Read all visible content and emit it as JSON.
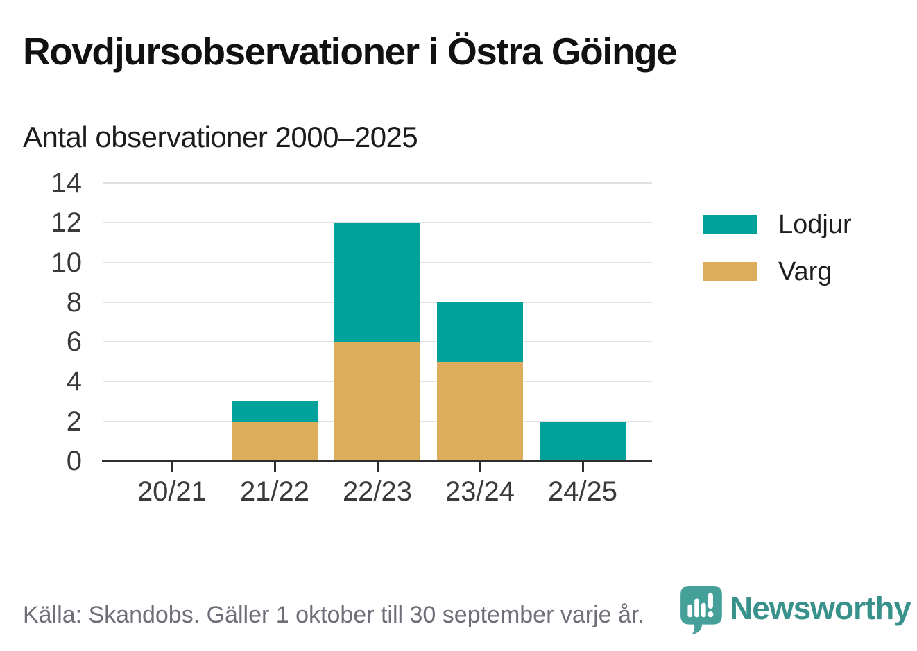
{
  "header": {
    "title": "Rovdjursobservationer i Östra Göinge",
    "subtitle": "Antal observationer 2000–2025"
  },
  "chart_data": {
    "type": "bar",
    "stacked": true,
    "categories": [
      "20/21",
      "21/22",
      "22/23",
      "23/24",
      "24/25"
    ],
    "series": [
      {
        "name": "Varg",
        "color": "#dcad5b",
        "values": [
          0,
          2,
          6,
          5,
          0
        ]
      },
      {
        "name": "Lodjur",
        "color": "#00a29b",
        "values": [
          0,
          1,
          6,
          3,
          2
        ]
      }
    ],
    "totals": [
      0,
      3,
      12,
      8,
      2
    ],
    "legend": [
      {
        "label": "Lodjur",
        "color": "#00a29b"
      },
      {
        "label": "Varg",
        "color": "#dcad5b"
      }
    ],
    "legend_position": "right",
    "title": "Rovdjursobservationer i Östra Göinge",
    "subtitle": "Antal observationer 2000–2025",
    "xlabel": "",
    "ylabel": "",
    "ylim": [
      0,
      14
    ],
    "yticks": [
      0,
      2,
      4,
      6,
      8,
      10,
      12,
      14
    ],
    "grid": true
  },
  "footer": {
    "source": "Källa: Skandobs. Gäller 1 oktober till 30 september varje år.",
    "brand": "Newsworthy"
  },
  "icons": {
    "brand_logo": "newsworthy-speech-bubble-bar-chart-icon"
  },
  "colors": {
    "lodjur": "#00a29b",
    "varg": "#dcad5b",
    "axis": "#2e2e2e",
    "gridline": "#e1e1e1",
    "title_text": "#111111",
    "axis_text": "#3a3a3a",
    "muted_text": "#6e6e78",
    "brand_teal": "#39918b",
    "logo_bubble": "#45a09a"
  }
}
